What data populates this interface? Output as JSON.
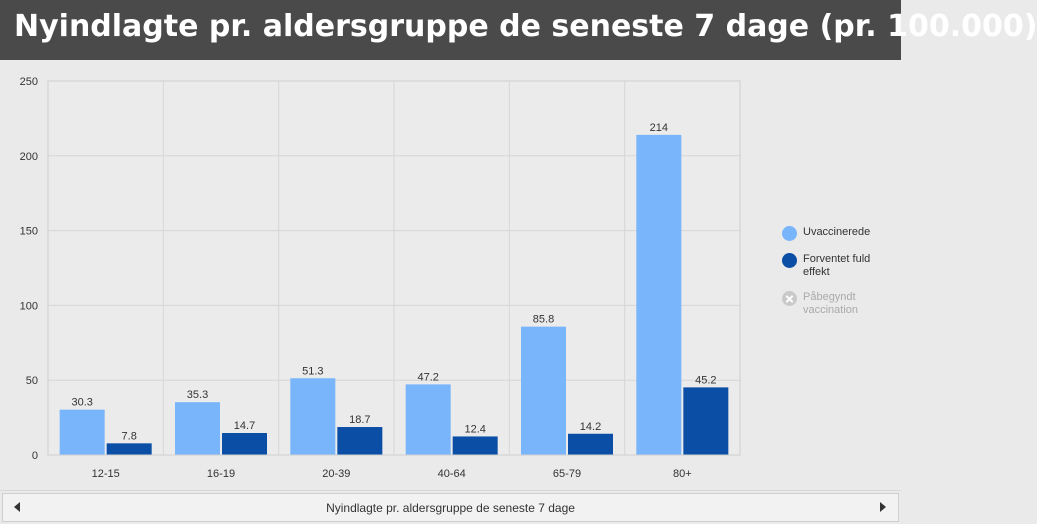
{
  "header": {
    "title": "Nyindlagte pr. aldersgruppe de seneste 7 dage (pr. 100.000)"
  },
  "footer": {
    "title": "Nyindlagte pr. aldersgruppe de seneste 7 dage"
  },
  "legend": {
    "placement": "right",
    "items": [
      {
        "label": "Uvaccinerede",
        "color": "#78b5fa",
        "hidden": false
      },
      {
        "label": "Forventet fuld effekt",
        "color": "#0a4ea6",
        "hidden": false
      },
      {
        "label": "Påbegyndt vaccination",
        "color": "#c9c9c9",
        "hidden": true
      }
    ]
  },
  "chart_data": {
    "type": "bar",
    "title": "Nyindlagte pr. aldersgruppe de seneste 7 dage (pr. 100.000)",
    "xlabel": "",
    "ylabel": "",
    "ylim": [
      0,
      250
    ],
    "yticks": [
      0,
      50,
      100,
      150,
      200,
      250
    ],
    "grid": true,
    "categories": [
      "12-15",
      "16-19",
      "20-39",
      "40-64",
      "65-79",
      "80+"
    ],
    "series": [
      {
        "name": "Uvaccinerede",
        "color": "#78b5fa",
        "values": [
          30.3,
          35.3,
          51.3,
          47.2,
          85.8,
          214
        ],
        "labels": [
          "30.3",
          "35.3",
          "51.3",
          "47.2",
          "85.8",
          "214"
        ]
      },
      {
        "name": "Forventet fuld effekt",
        "color": "#0a4ea6",
        "values": [
          7.8,
          14.7,
          18.7,
          12.4,
          14.2,
          45.2
        ],
        "labels": [
          "7.8",
          "14.7",
          "18.7",
          "12.4",
          "14.2",
          "45.2"
        ]
      }
    ]
  }
}
